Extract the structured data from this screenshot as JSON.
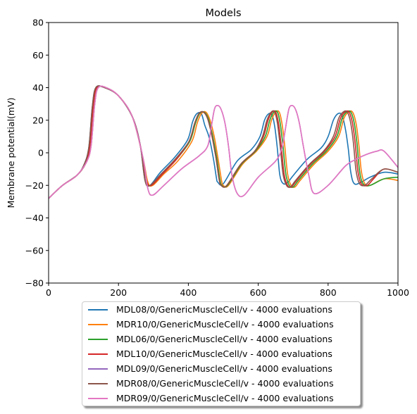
{
  "chart_data": {
    "type": "line",
    "title": "Models",
    "xlabel": "",
    "ylabel": "Membrane potential(mV)",
    "xlim": [
      0,
      1000
    ],
    "ylim": [
      -80,
      80
    ],
    "xticks": [
      "0",
      "200",
      "400",
      "600",
      "800",
      "1000"
    ],
    "yticks": [
      "−80",
      "−60",
      "−40",
      "−20",
      "0",
      "20",
      "40",
      "60",
      "80"
    ],
    "legend_position": "below",
    "grid": false,
    "series": [
      {
        "name": "MDL08/0/GenericMuscleCell/v - 4000 evaluations",
        "color": "#1f77b4",
        "x": [
          0,
          40,
          80,
          100,
          115,
          125,
          135,
          160,
          200,
          240,
          262,
          276,
          290,
          320,
          360,
          398,
          412,
          424,
          437,
          447,
          460,
          472,
          480,
          484,
          500,
          540,
          580,
          605,
          618,
          630,
          640,
          648,
          655,
          662,
          672,
          685,
          700,
          740,
          780,
          800,
          815,
          828,
          840,
          850,
          858,
          865,
          875,
          895,
          920,
          960,
          1000
        ],
        "y": [
          -28,
          -20,
          -14,
          -8,
          3,
          28,
          40,
          40,
          35,
          22,
          5,
          -17,
          -20,
          -12,
          -3,
          8,
          19,
          24,
          24,
          17,
          9,
          -4,
          -15,
          -18,
          -19,
          -5,
          2,
          10,
          20,
          24,
          23,
          15,
          2,
          -14,
          -19,
          -18,
          -14,
          -4,
          3,
          10,
          20,
          24,
          23,
          14,
          2,
          -12,
          -19,
          -18,
          -15,
          -12,
          -13
        ]
      },
      {
        "name": "MDR10/0/GenericMuscleCell/v - 4000 evaluations",
        "color": "#ff7f0e",
        "x": [
          0,
          40,
          80,
          110,
          122,
          132,
          142,
          165,
          200,
          240,
          270,
          284,
          298,
          330,
          370,
          410,
          425,
          437,
          450,
          462,
          474,
          486,
          495,
          500,
          515,
          555,
          595,
          625,
          638,
          650,
          660,
          668,
          676,
          684,
          694,
          705,
          720,
          760,
          800,
          830,
          845,
          858,
          870,
          880,
          888,
          895,
          905,
          920,
          960,
          1000
        ],
        "y": [
          -28,
          -20,
          -14,
          -5,
          5,
          30,
          40,
          40,
          35,
          22,
          -3,
          -18,
          -20,
          -13,
          -5,
          7,
          18,
          24,
          25,
          20,
          10,
          -5,
          -17,
          -20,
          -20,
          -7,
          1,
          10,
          20,
          25,
          25,
          18,
          4,
          -13,
          -20,
          -21,
          -17,
          -7,
          1,
          10,
          21,
          25,
          25,
          18,
          5,
          -11,
          -19,
          -20,
          -16,
          -17
        ]
      },
      {
        "name": "MDL06/0/GenericMuscleCell/v - 4000 evaluations",
        "color": "#2ca02c",
        "x": [
          0,
          40,
          80,
          105,
          118,
          128,
          138,
          162,
          200,
          240,
          266,
          280,
          294,
          326,
          366,
          404,
          420,
          432,
          445,
          457,
          469,
          481,
          490,
          496,
          512,
          552,
          592,
          620,
          633,
          645,
          655,
          663,
          671,
          679,
          689,
          700,
          715,
          755,
          795,
          825,
          840,
          853,
          865,
          875,
          883,
          890,
          900,
          920,
          960,
          1000
        ],
        "y": [
          -28,
          -20,
          -14,
          -7,
          4,
          29,
          40,
          40,
          35,
          22,
          1,
          -17,
          -20,
          -13,
          -4,
          7,
          18,
          24,
          25,
          21,
          11,
          -3,
          -16,
          -20,
          -20,
          -7,
          1,
          10,
          20,
          25,
          25,
          18,
          4,
          -13,
          -20,
          -21,
          -17,
          -7,
          1,
          10,
          21,
          25,
          25,
          18,
          5,
          -11,
          -19,
          -20,
          -16,
          -15
        ]
      },
      {
        "name": "MDL10/0/GenericMuscleCell/v - 4000 evaluations",
        "color": "#d62728",
        "x": [
          0,
          40,
          80,
          105,
          118,
          128,
          138,
          162,
          200,
          240,
          266,
          280,
          294,
          326,
          366,
          402,
          418,
          430,
          443,
          455,
          467,
          479,
          488,
          494,
          510,
          550,
          590,
          615,
          628,
          640,
          650,
          658,
          666,
          674,
          684,
          695,
          710,
          750,
          790,
          820,
          835,
          848,
          860,
          870,
          878,
          885,
          895,
          912,
          930,
          960,
          1000
        ],
        "y": [
          -28,
          -20,
          -14,
          -7,
          4,
          29,
          40,
          40,
          35,
          22,
          1,
          -17,
          -20,
          -13,
          -4,
          7,
          18,
          24,
          25,
          21,
          11,
          -3,
          -16,
          -20,
          -20,
          -7,
          1,
          10,
          20,
          25,
          25,
          18,
          4,
          -13,
          -20,
          -21,
          -17,
          -7,
          1,
          10,
          21,
          25,
          25,
          18,
          5,
          -11,
          -19,
          -20,
          -16,
          -10,
          -12
        ]
      },
      {
        "name": "MDL09/0/GenericMuscleCell/v - 4000 evaluations",
        "color": "#9467bd",
        "x": [
          0,
          40,
          80,
          110,
          122,
          132,
          142,
          165,
          200,
          240,
          270,
          284,
          298,
          330,
          380,
          430,
          455,
          465,
          475,
          485,
          495,
          505,
          515,
          525,
          540,
          560,
          600,
          650,
          668,
          678,
          688,
          698,
          708,
          718,
          730,
          745,
          760,
          800,
          850,
          880,
          910,
          940,
          960,
          1000
        ],
        "y": [
          -28,
          -20,
          -14,
          -5,
          5,
          30,
          40,
          40,
          35,
          22,
          -3,
          -22,
          -26,
          -20,
          -10,
          -2,
          4,
          15,
          27,
          29,
          26,
          18,
          4,
          -14,
          -25,
          -26,
          -15,
          -5,
          3,
          15,
          27,
          29,
          26,
          18,
          3,
          -14,
          -25,
          -20,
          -8,
          -4,
          -1,
          1,
          1,
          -9
        ]
      },
      {
        "name": "MDR08/0/GenericMuscleCell/v - 4000 evaluations",
        "color": "#8c564b",
        "x": [
          0,
          40,
          80,
          100,
          115,
          125,
          135,
          160,
          200,
          240,
          262,
          276,
          290,
          322,
          362,
          402,
          418,
          430,
          443,
          455,
          467,
          479,
          488,
          494,
          510,
          550,
          590,
          612,
          625,
          637,
          647,
          655,
          663,
          671,
          681,
          692,
          707,
          747,
          787,
          815,
          830,
          843,
          855,
          865,
          873,
          880,
          890,
          905,
          925,
          960,
          1000
        ],
        "y": [
          -28,
          -20,
          -14,
          -8,
          3,
          28,
          40,
          40,
          35,
          22,
          5,
          -17,
          -20,
          -13,
          -4,
          7,
          18,
          24,
          25,
          21,
          11,
          -3,
          -16,
          -20,
          -20,
          -7,
          1,
          10,
          20,
          25,
          25,
          18,
          4,
          -13,
          -20,
          -21,
          -17,
          -7,
          1,
          10,
          21,
          25,
          25,
          18,
          5,
          -11,
          -19,
          -20,
          -16,
          -10,
          -12
        ]
      },
      {
        "name": "MDR09/0/GenericMuscleCell/v - 4000 evaluations",
        "color": "#e377c2",
        "x": [
          0,
          40,
          80,
          110,
          122,
          132,
          142,
          165,
          200,
          240,
          270,
          284,
          298,
          330,
          380,
          430,
          455,
          465,
          475,
          485,
          495,
          505,
          515,
          525,
          540,
          560,
          600,
          650,
          668,
          678,
          688,
          698,
          708,
          718,
          730,
          745,
          760,
          800,
          850,
          880,
          910,
          940,
          960,
          1000
        ],
        "y": [
          -28,
          -20,
          -14,
          -5,
          5,
          30,
          40,
          40,
          35,
          22,
          -3,
          -22,
          -26,
          -20,
          -10,
          -2,
          4,
          15,
          27,
          29,
          26,
          18,
          4,
          -14,
          -25,
          -26,
          -15,
          -5,
          3,
          15,
          27,
          29,
          26,
          18,
          3,
          -14,
          -25,
          -20,
          -8,
          -4,
          -1,
          1,
          1,
          -9
        ]
      }
    ]
  }
}
